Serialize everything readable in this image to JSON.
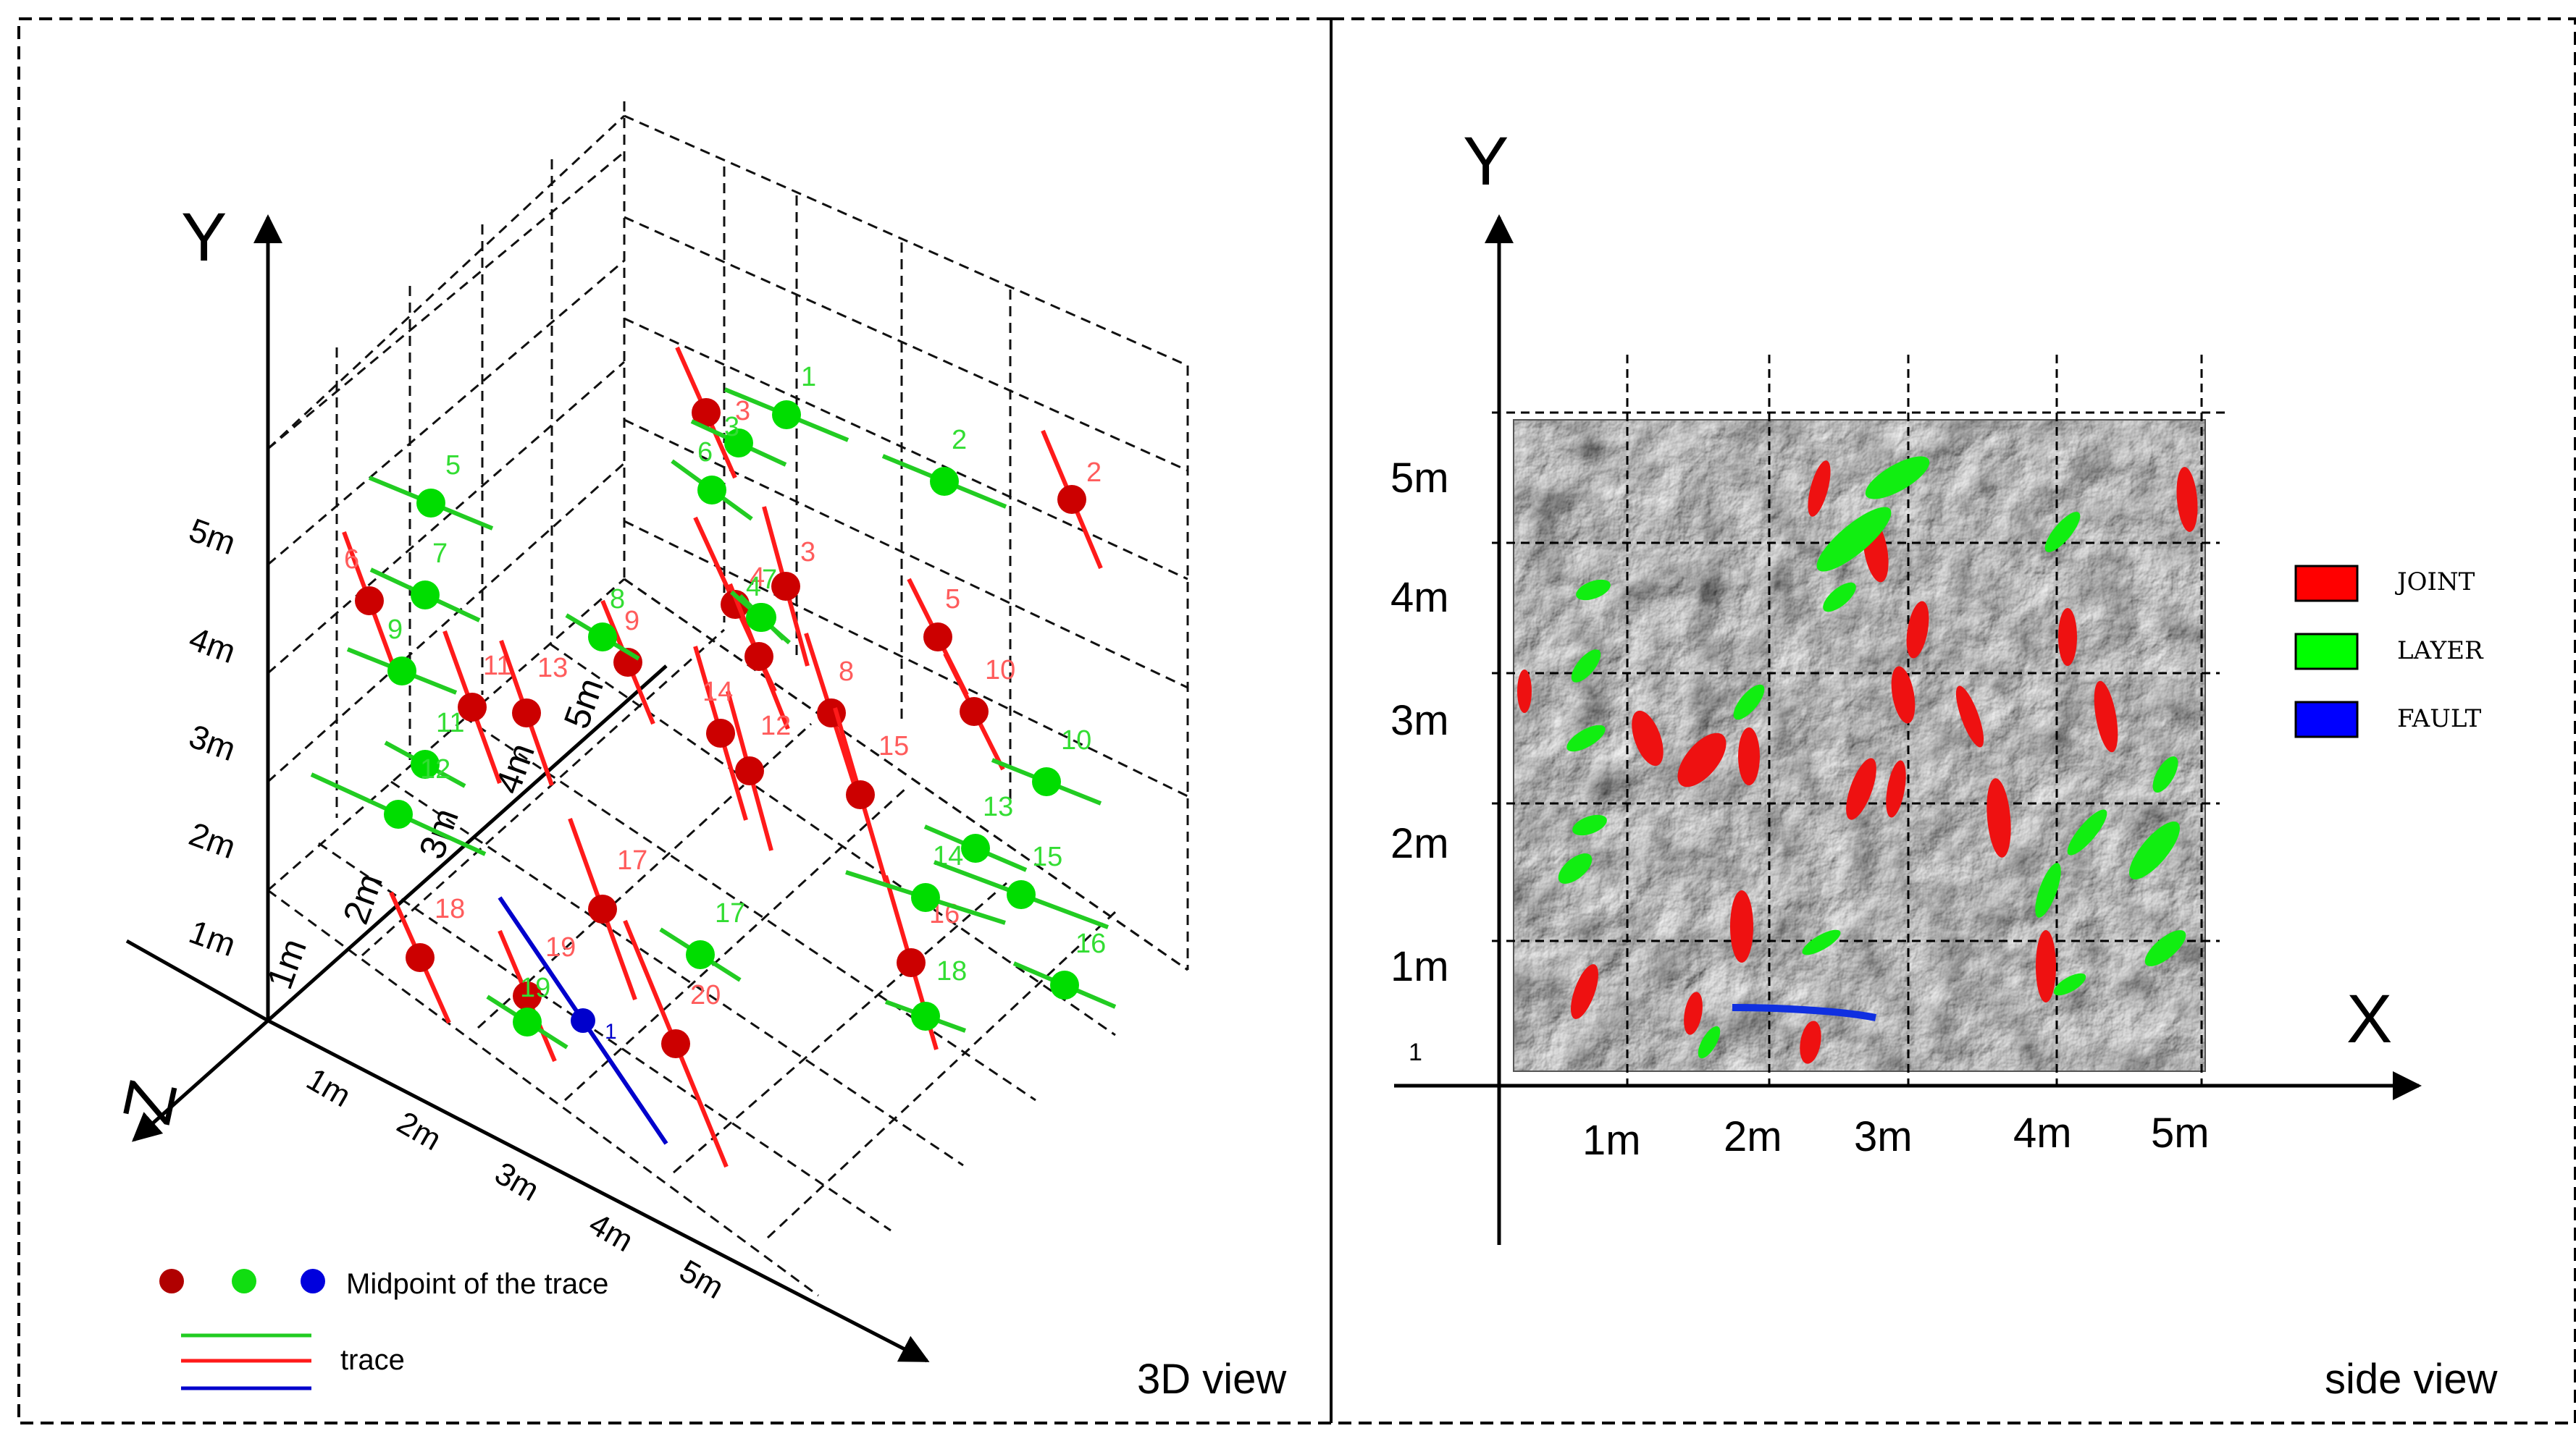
{
  "panels": {
    "left_caption": "3D view",
    "right_caption": "side view"
  },
  "left_view": {
    "y_axis_label": "Y",
    "z_axis_label": "Z",
    "y_ticks": [
      "1m",
      "2m",
      "3m",
      "4m",
      "5m"
    ],
    "z_depth_ticks": [
      "1m",
      "2m",
      "3m",
      "4m",
      "5m"
    ],
    "x_ticks": [
      "1m",
      "2m",
      "3m",
      "4m",
      "5m"
    ],
    "legend": {
      "midpoint_label": "Midpoint of the trace",
      "trace_label": "trace"
    }
  },
  "right_view": {
    "y_axis_label": "Y",
    "x_axis_label": "X",
    "y_ticks": [
      "1m",
      "2m",
      "3m",
      "4m",
      "5m"
    ],
    "x_ticks": [
      "1m",
      "2m",
      "3m",
      "4m",
      "5m"
    ],
    "origin_label": "1",
    "legend": {
      "joint": "JOINT",
      "layer": "LAYER",
      "fault": "FAULT"
    }
  },
  "colors": {
    "joint": "#cc0000",
    "joint_line": "#ff1a1a",
    "layer": "#00dd00",
    "layer_line": "#22cc22",
    "fault": "#0000cc",
    "joint_label": "#ff5c5c",
    "layer_label": "#33dd33"
  },
  "traces": [
    {
      "kind": "joint",
      "label": "3"
    },
    {
      "kind": "joint",
      "label": "2"
    },
    {
      "kind": "joint",
      "label": "3"
    },
    {
      "kind": "joint",
      "label": "4"
    },
    {
      "kind": "joint",
      "label": "5"
    },
    {
      "kind": "joint",
      "label": "6"
    },
    {
      "kind": "joint",
      "label": "7"
    },
    {
      "kind": "joint",
      "label": "8"
    },
    {
      "kind": "joint",
      "label": "9"
    },
    {
      "kind": "joint",
      "label": "10"
    },
    {
      "kind": "joint",
      "label": "11"
    },
    {
      "kind": "joint",
      "label": "12"
    },
    {
      "kind": "joint",
      "label": "13"
    },
    {
      "kind": "joint",
      "label": "14"
    },
    {
      "kind": "joint",
      "label": "15"
    },
    {
      "kind": "joint",
      "label": "16"
    },
    {
      "kind": "joint",
      "label": "17"
    },
    {
      "kind": "joint",
      "label": "18"
    },
    {
      "kind": "joint",
      "label": "19"
    },
    {
      "kind": "joint",
      "label": "20"
    },
    {
      "kind": "layer",
      "label": "1"
    },
    {
      "kind": "layer",
      "label": "2"
    },
    {
      "kind": "layer",
      "label": "5"
    },
    {
      "kind": "layer",
      "label": "6"
    },
    {
      "kind": "layer",
      "label": "7"
    },
    {
      "kind": "layer",
      "label": "8"
    },
    {
      "kind": "layer",
      "label": "9"
    },
    {
      "kind": "layer",
      "label": "10"
    },
    {
      "kind": "layer",
      "label": "11"
    },
    {
      "kind": "layer",
      "label": "12"
    },
    {
      "kind": "layer",
      "label": "13"
    },
    {
      "kind": "layer",
      "label": "14"
    },
    {
      "kind": "layer",
      "label": "15"
    },
    {
      "kind": "layer",
      "label": "16"
    },
    {
      "kind": "layer",
      "label": "17"
    },
    {
      "kind": "layer",
      "label": "18"
    },
    {
      "kind": "layer",
      "label": "19"
    },
    {
      "kind": "layer",
      "label": "4"
    },
    {
      "kind": "layer",
      "label": "3"
    },
    {
      "kind": "layer",
      "label": "7"
    },
    {
      "kind": "fault",
      "label": "1"
    }
  ]
}
